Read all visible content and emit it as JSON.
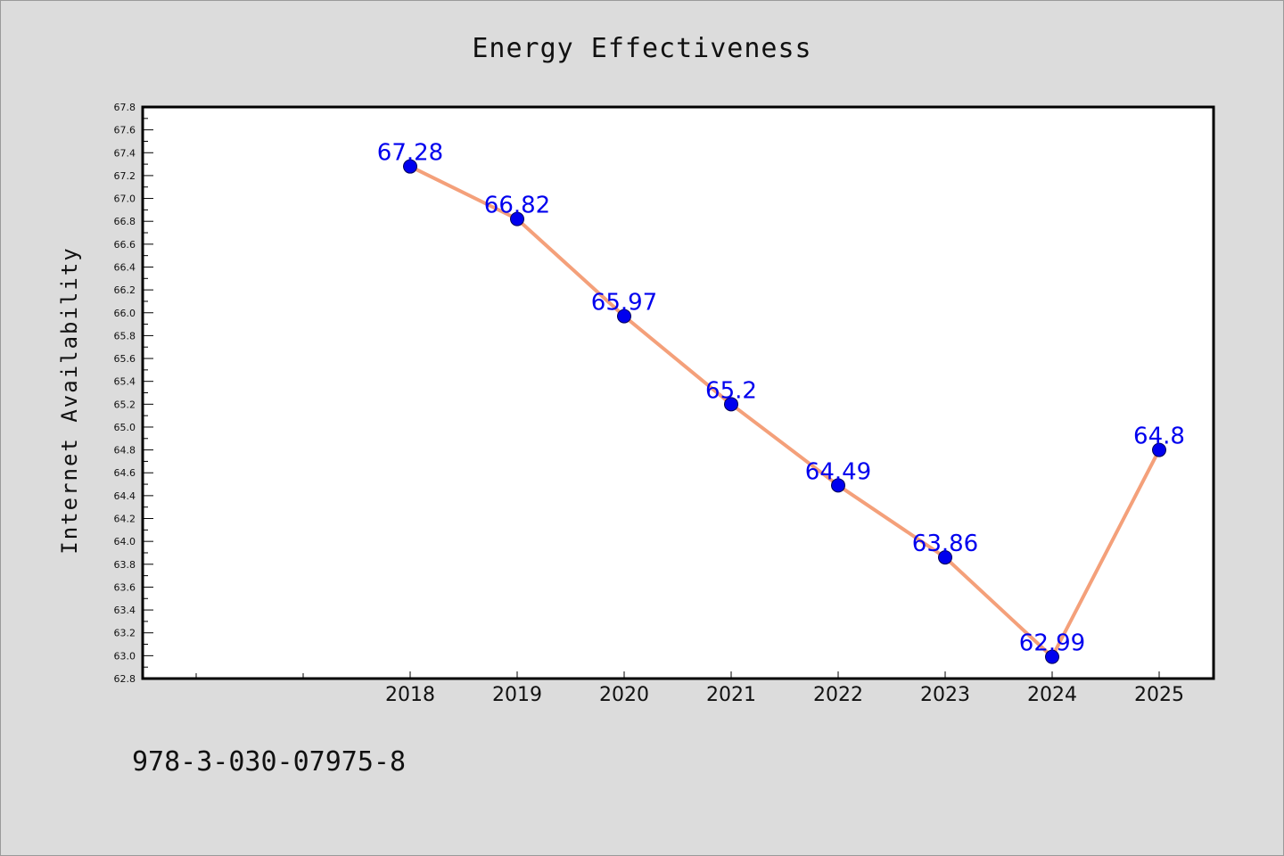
{
  "figure": {
    "footnote": "978-3-030-07975-8"
  },
  "chart_data": {
    "type": "line",
    "title": "Energy Effectiveness",
    "xlabel": "",
    "ylabel": "Internet Availability",
    "categories": [
      "2018",
      "2019",
      "2020",
      "2021",
      "2022",
      "2023",
      "2024",
      "2025"
    ],
    "series": [
      {
        "values": [
          67.28,
          66.82,
          65.97,
          65.2,
          64.49,
          63.86,
          62.99,
          64.8
        ],
        "labels": [
          "67.28",
          "66.82",
          "65.97",
          "65.2",
          "64.49",
          "63.86",
          "62.99",
          "64.8"
        ]
      }
    ],
    "ylim": [
      62.8,
      67.8
    ],
    "yticks": [
      "62.8",
      "63.0",
      "63.2",
      "63.4",
      "63.6",
      "63.8",
      "64.0",
      "64.2",
      "64.4",
      "64.6",
      "64.8",
      "65.0",
      "65.2",
      "65.4",
      "65.6",
      "65.8",
      "66.0",
      "66.2",
      "66.4",
      "66.6",
      "66.8",
      "67.0",
      "67.2",
      "67.4",
      "67.6",
      "67.8"
    ],
    "extra_xticks_before": 2,
    "grid": false,
    "legend": "none",
    "colors": {
      "line": "#f4a07a",
      "marker": "#0000ee",
      "label": "#0000ee",
      "plot_background": "#ffffff",
      "figure_background": "#dcdcdc"
    }
  }
}
